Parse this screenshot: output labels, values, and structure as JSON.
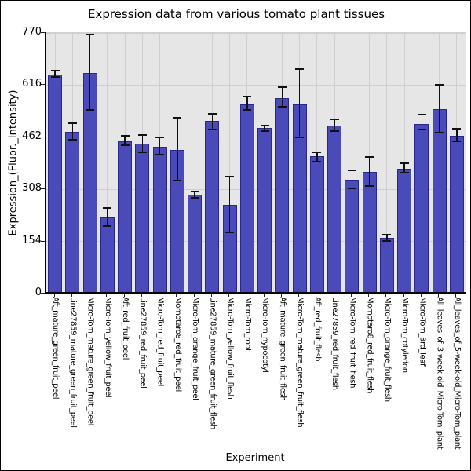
{
  "chart_data": {
    "type": "bar",
    "title": "Expression data from various tomato plant tissues",
    "xlabel": "Experiment",
    "ylabel": "Expression_(Fluor._Intensity)",
    "ylim": [
      0,
      770
    ],
    "yticks": [
      0,
      154,
      308,
      462,
      616,
      770
    ],
    "grid": true,
    "legend": "none",
    "bar_color": "#4a4ab8",
    "bar_edge_color": "#28288c",
    "error_bar_color": "#111111",
    "plot_bg_color": "#e6e6e6",
    "grid_color": "#cfcfcf",
    "categories": [
      "Aft_mature_green_fruit_peel",
      "Line27859_mature_green_fruit_peel",
      "Micro-Tom_mature_green_fruit_peel",
      "Micro-Tom_yellow_fruit_peel",
      "Aft_red_fruit_peel",
      "Line27859_red_fruit_peel",
      "Micro-Tom_red_fruit_peel",
      "Momotaro8_red_fruit_peel",
      "Micro-Tom_orange_fruit_peel",
      "Line27859_mature_green_fruit_flesh",
      "Micro-Tom_yellow_fruit_flesh",
      "Micro-Tom_root",
      "Micro-Tom_hypocotyl",
      "Aft_mature_green_fruit_flesh",
      "Micro-Tom_mature_green_fruit_flesh",
      "Aft_red_fruit_flesh",
      "Line27859_red_fruit_flesh",
      "Micro-Tom_red_fruit_flesh",
      "Momotaro8_red_fruit_flesh",
      "Micro-Tom_orange_fruit_flesh",
      "Micro-Tom_cotyledon",
      "Micro-Tom_3rd_leaf",
      "All_leaves_of_3-week-old_Micro-Tom_plant",
      "All_leaves_of_5-week-old_Micro-Tom_plant"
    ],
    "values": [
      647,
      477,
      651,
      224,
      449,
      442,
      434,
      425,
      292,
      511,
      261,
      560,
      489,
      578,
      560,
      405,
      497,
      336,
      359,
      164,
      369,
      502,
      545,
      467
    ],
    "error_low": [
      640,
      454,
      543,
      199,
      438,
      417,
      411,
      334,
      282,
      485,
      181,
      543,
      481,
      552,
      462,
      390,
      479,
      311,
      317,
      155,
      358,
      485,
      475,
      449
    ],
    "error_high": [
      659,
      504,
      766,
      253,
      466,
      468,
      462,
      520,
      302,
      532,
      346,
      583,
      497,
      609,
      663,
      417,
      514,
      363,
      404,
      173,
      384,
      528,
      618,
      487
    ]
  }
}
